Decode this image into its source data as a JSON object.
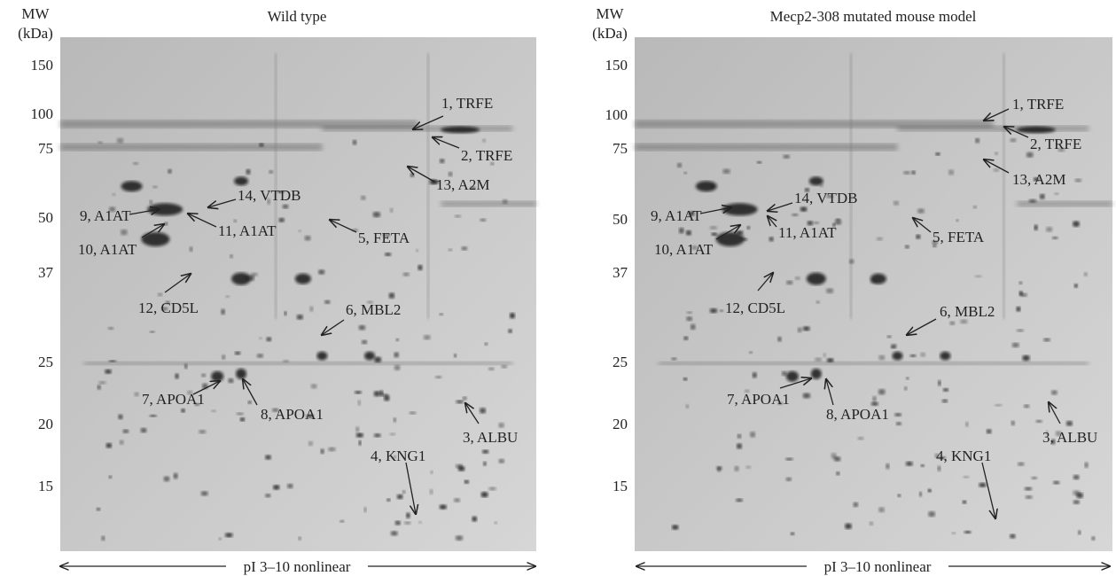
{
  "panels": [
    {
      "title": "Wild type",
      "y_label_line1": "MW",
      "y_label_line2": "(kDa)",
      "mw_ticks": [
        "150",
        "100",
        "75",
        "50",
        "37",
        "25",
        "20",
        "15"
      ],
      "annotations": [
        "1, TRFE",
        "2, TRFE",
        "13, A2M",
        "14, VTDB",
        "9, A1AT",
        "10, A1AT",
        "11, A1AT",
        "5, FETA",
        "12, CD5L",
        "6, MBL2",
        "7, APOA1",
        "8, APOA1",
        "3, ALBU",
        "4, KNG1"
      ],
      "x_label": "pI 3–10 nonlinear"
    },
    {
      "title": "Mecp2-308 mutated mouse model",
      "y_label_line1": "MW",
      "y_label_line2": "(kDa)",
      "mw_ticks": [
        "150",
        "100",
        "75",
        "50",
        "37",
        "25",
        "20",
        "15"
      ],
      "annotations": [
        "1, TRFE",
        "2, TRFE",
        "13, A2M",
        "14, VTDB",
        "9, A1AT",
        "10, A1AT",
        "11, A1AT",
        "5, FETA",
        "12, CD5L",
        "6, MBL2",
        "7, APOA1",
        "8, APOA1",
        "3, ALBU",
        "4, KNG1"
      ],
      "x_label": "pI 3–10 nonlinear"
    }
  ]
}
